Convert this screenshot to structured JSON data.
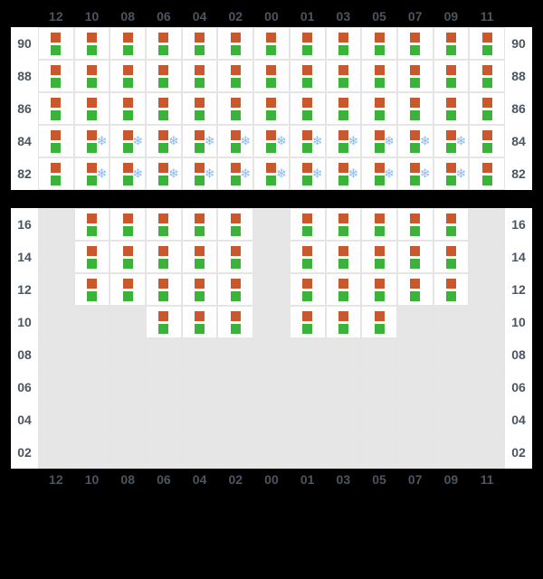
{
  "columns": [
    "12",
    "10",
    "08",
    "06",
    "04",
    "02",
    "00",
    "01",
    "03",
    "05",
    "07",
    "09",
    "11"
  ],
  "top": {
    "row_labels": [
      "90",
      "88",
      "86",
      "84",
      "82"
    ],
    "background_color": "#ffffff",
    "cell_border_color": "#e5e5e5",
    "occupied_indices": [
      [
        0,
        1,
        2,
        3,
        4,
        5,
        6,
        7,
        8,
        9,
        10,
        11,
        12
      ],
      [
        0,
        1,
        2,
        3,
        4,
        5,
        6,
        7,
        8,
        9,
        10,
        11,
        12
      ],
      [
        0,
        1,
        2,
        3,
        4,
        5,
        6,
        7,
        8,
        9,
        10,
        11,
        12
      ],
      [
        0,
        1,
        2,
        3,
        4,
        5,
        6,
        7,
        8,
        9,
        10,
        11,
        12
      ],
      [
        0,
        1,
        2,
        3,
        4,
        5,
        6,
        7,
        8,
        9,
        10,
        11,
        12
      ]
    ],
    "snow_indices": [
      [],
      [],
      [],
      [
        1,
        2,
        3,
        4,
        5,
        6,
        7,
        8,
        9,
        10,
        11
      ],
      [
        1,
        2,
        3,
        4,
        5,
        6,
        7,
        8,
        9,
        10,
        11
      ]
    ]
  },
  "bottom": {
    "row_labels": [
      "16",
      "14",
      "12",
      "10",
      "08",
      "06",
      "04",
      "02"
    ],
    "background_color": "#e6e6e6",
    "cell_border_color": "#e5e5e5",
    "occupied_indices": [
      [
        1,
        2,
        3,
        4,
        5,
        7,
        8,
        9,
        10,
        11
      ],
      [
        1,
        2,
        3,
        4,
        5,
        7,
        8,
        9,
        10,
        11
      ],
      [
        1,
        2,
        3,
        4,
        5,
        7,
        8,
        9,
        10,
        11
      ],
      [
        3,
        4,
        5,
        7,
        8,
        9
      ],
      [],
      [],
      [],
      []
    ],
    "snow_indices": [
      [],
      [],
      [],
      [],
      [],
      [],
      [],
      []
    ]
  },
  "colors": {
    "label_text": "#4a5560",
    "square_top": "#c9582e",
    "square_bottom": "#3bb33b",
    "snow_icon": "#8fb8e8",
    "page_background": "#000000"
  },
  "icons": {
    "snow": "❄"
  }
}
